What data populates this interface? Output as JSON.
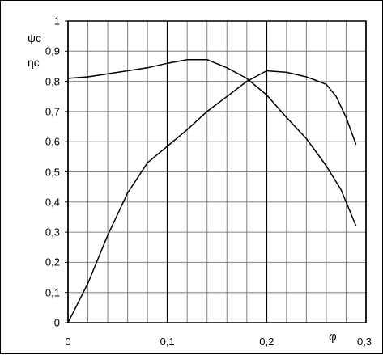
{
  "chart_data": {
    "type": "line",
    "title": "",
    "xlabel": "φ",
    "ylabels": [
      "ψc",
      "ηc"
    ],
    "xlim": [
      0,
      0.3
    ],
    "ylim": [
      0,
      1
    ],
    "x_major_ticks": [
      0,
      0.1,
      0.2,
      0.3
    ],
    "x_tick_labels": [
      "0",
      "0,1",
      "0,2",
      "0,3"
    ],
    "y_major_ticks": [
      0,
      0.1,
      0.2,
      0.3,
      0.4,
      0.5,
      0.6,
      0.7,
      0.8,
      0.9,
      1.0
    ],
    "y_tick_labels": [
      "0",
      "0,1",
      "0,2",
      "0,3",
      "0,4",
      "0,5",
      "0,6",
      "0,7",
      "0,8",
      "0,9",
      "1"
    ],
    "grid": true,
    "x_minor_step": 0.02,
    "y_minor_step": 0.1,
    "series": [
      {
        "points": [
          [
            0,
            0.81
          ],
          [
            0.02,
            0.815
          ],
          [
            0.04,
            0.825
          ],
          [
            0.06,
            0.835
          ],
          [
            0.08,
            0.845
          ],
          [
            0.1,
            0.86
          ],
          [
            0.12,
            0.872
          ],
          [
            0.14,
            0.872
          ],
          [
            0.16,
            0.845
          ],
          [
            0.18,
            0.81
          ],
          [
            0.2,
            0.755
          ],
          [
            0.22,
            0.68
          ],
          [
            0.24,
            0.61
          ],
          [
            0.26,
            0.52
          ],
          [
            0.275,
            0.44
          ],
          [
            0.29,
            0.32
          ]
        ]
      },
      {
        "points": [
          [
            0,
            0.0
          ],
          [
            0.02,
            0.13
          ],
          [
            0.04,
            0.29
          ],
          [
            0.06,
            0.43
          ],
          [
            0.08,
            0.53
          ],
          [
            0.1,
            0.585
          ],
          [
            0.12,
            0.64
          ],
          [
            0.14,
            0.7
          ],
          [
            0.16,
            0.75
          ],
          [
            0.18,
            0.8
          ],
          [
            0.2,
            0.835
          ],
          [
            0.22,
            0.83
          ],
          [
            0.24,
            0.815
          ],
          [
            0.26,
            0.79
          ],
          [
            0.27,
            0.75
          ],
          [
            0.28,
            0.68
          ],
          [
            0.29,
            0.59
          ]
        ]
      }
    ]
  }
}
